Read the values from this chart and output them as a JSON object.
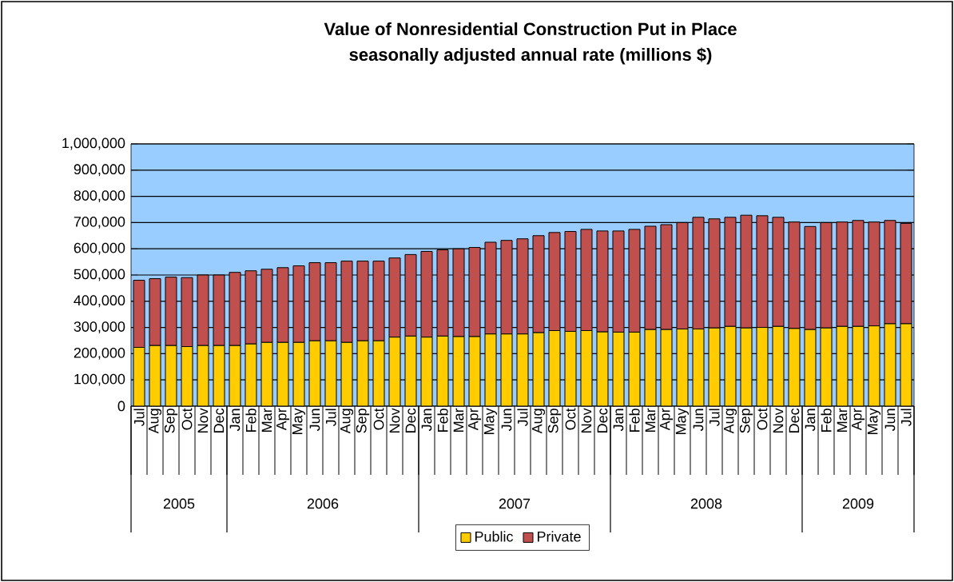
{
  "chart_data": {
    "type": "bar",
    "title": "Value of Nonresidential Construction Put in Place",
    "subtitle": "seasonally adjusted annual rate (millions  $)",
    "categories": [
      "Jul",
      "Aug",
      "Sep",
      "Oct",
      "Nov",
      "Dec",
      "Jan",
      "Feb",
      "Mar",
      "Apr",
      "May",
      "Jun",
      "Jul",
      "Aug",
      "Sep",
      "Oct",
      "Nov",
      "Dec",
      "Jan",
      "Feb",
      "Mar",
      "Apr",
      "May",
      "Jun",
      "Jul",
      "Aug",
      "Sep",
      "Oct",
      "Nov",
      "Dec",
      "Jan",
      "Feb",
      "Mar",
      "Apr",
      "May",
      "Jun",
      "Jul",
      "Aug",
      "Sep",
      "Oct",
      "Nov",
      "Dec",
      "Jan",
      "Feb",
      "Mar",
      "Apr",
      "May",
      "Jun",
      "Jul"
    ],
    "series": [
      {
        "name": "Public",
        "color": "#ffcc00",
        "values": [
          224000,
          231000,
          231000,
          227000,
          231000,
          231000,
          231000,
          237000,
          243000,
          243000,
          243000,
          249000,
          249000,
          243000,
          249000,
          249000,
          263000,
          267000,
          263000,
          267000,
          265000,
          265000,
          275000,
          275000,
          275000,
          280000,
          288000,
          285000,
          288000,
          283000,
          282000,
          282000,
          292000,
          292000,
          294000,
          294000,
          298000,
          304000,
          298000,
          300000,
          304000,
          296000,
          292000,
          298000,
          304000,
          304000,
          306000,
          314000,
          314000
        ]
      },
      {
        "name": "Private",
        "color": "#c0504d",
        "values": [
          256000,
          255000,
          261000,
          263000,
          269000,
          269000,
          279000,
          279000,
          279000,
          285000,
          292000,
          298000,
          298000,
          310000,
          304000,
          304000,
          302000,
          311000,
          327000,
          329000,
          335000,
          340000,
          350000,
          357000,
          363000,
          370000,
          374000,
          381000,
          386000,
          385000,
          386000,
          392000,
          394000,
          400000,
          406000,
          426000,
          416000,
          416000,
          430000,
          426000,
          416000,
          406000,
          393000,
          402000,
          398000,
          404000,
          396000,
          394000,
          383000
        ]
      }
    ],
    "stacked": true,
    "ylim": [
      0,
      1000000
    ],
    "yticks": [
      0,
      {
        "value": 100000,
        "label": "100,000"
      },
      {
        "value": 200000,
        "label": "200,000"
      },
      {
        "value": 300000,
        "label": "300,000"
      },
      {
        "value": 400000,
        "label": "400,000"
      },
      {
        "value": 500000,
        "label": "500,000"
      },
      {
        "value": 600000,
        "label": "600,000"
      },
      {
        "value": 700000,
        "label": "700,000"
      },
      {
        "value": 800000,
        "label": "800,000"
      },
      {
        "value": 900000,
        "label": "900,000"
      },
      {
        "value": 1000000,
        "label": "1,000,000"
      }
    ],
    "grid": "y",
    "legend": "bottom",
    "annotations": [
      "2005",
      "2006",
      "2007",
      "2008",
      "2009"
    ]
  }
}
